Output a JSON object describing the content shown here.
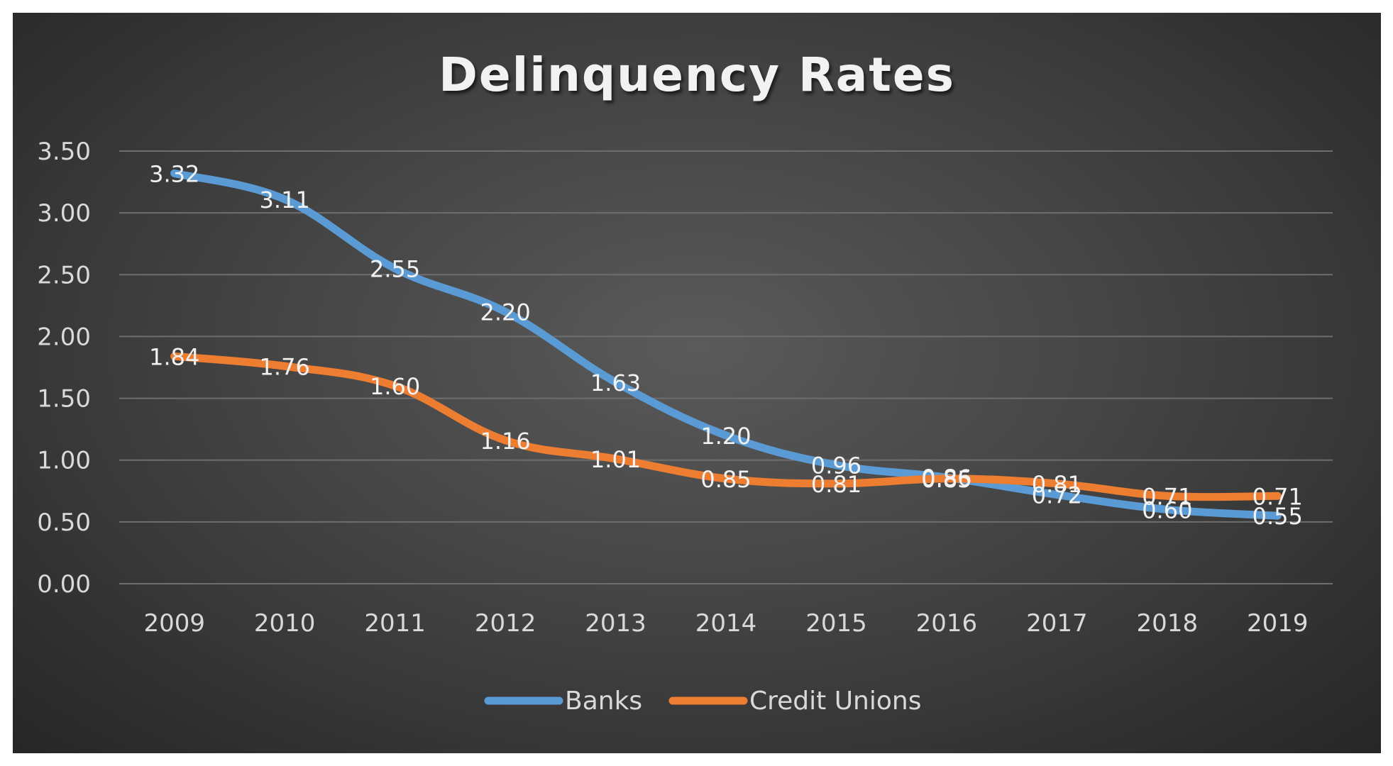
{
  "chart_data": {
    "type": "line",
    "title": "Delinquency Rates",
    "categories": [
      "2009",
      "2010",
      "2011",
      "2012",
      "2013",
      "2014",
      "2015",
      "2016",
      "2017",
      "2018",
      "2019"
    ],
    "ylim": [
      0,
      3.5
    ],
    "yticks": [
      "0.00",
      "0.50",
      "1.00",
      "1.50",
      "2.00",
      "2.50",
      "3.00",
      "3.50"
    ],
    "grid": true,
    "legend_position": "bottom",
    "series": [
      {
        "name": "Banks",
        "color": "#5b9bd5",
        "values": [
          3.32,
          3.11,
          2.55,
          2.2,
          1.63,
          1.2,
          0.96,
          0.86,
          0.72,
          0.6,
          0.55
        ],
        "labels": [
          "3.32",
          "3.11",
          "2.55",
          "2.20",
          "1.63",
          "1.20",
          "0.96",
          "0.86",
          "0.72",
          "0.60",
          "0.55"
        ]
      },
      {
        "name": "Credit Unions",
        "color": "#ed7d31",
        "values": [
          1.84,
          1.76,
          1.6,
          1.16,
          1.01,
          0.85,
          0.81,
          0.85,
          0.81,
          0.71,
          0.71
        ],
        "labels": [
          "1.84",
          "1.76",
          "1.60",
          "1.16",
          "1.01",
          "0.85",
          "0.81",
          "0.85",
          "0.81",
          "0.71",
          "0.71"
        ]
      }
    ]
  }
}
